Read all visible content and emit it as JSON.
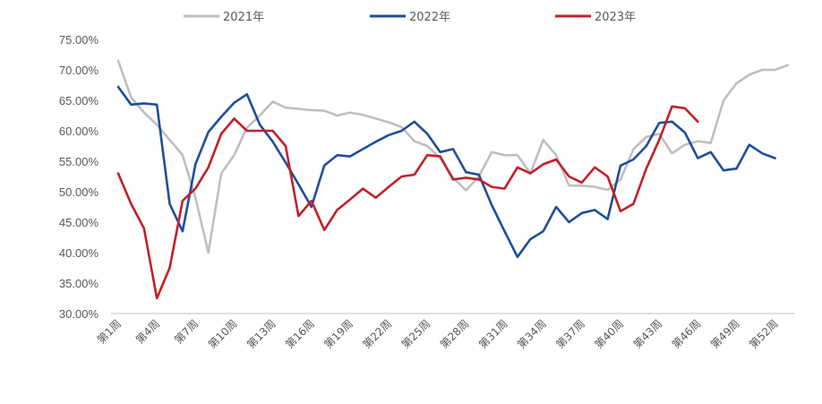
{
  "chart_data": {
    "type": "line",
    "title": "",
    "xlabel": "",
    "ylabel": "",
    "ylim": [
      30,
      75
    ],
    "y_ticks": [
      "30.00%",
      "35.00%",
      "40.00%",
      "45.00%",
      "50.00%",
      "55.00%",
      "60.00%",
      "65.00%",
      "70.00%",
      "75.00%"
    ],
    "grid": false,
    "legend_position": "top",
    "x_tick_labels": [
      "第1周",
      "第4周",
      "第7周",
      "第10周",
      "第13周",
      "第16周",
      "第19周",
      "第22周",
      "第25周",
      "第28周",
      "第31周",
      "第34周",
      "第37周",
      "第40周",
      "第43周",
      "第46周",
      "第49周",
      "第52周"
    ],
    "x": [
      1,
      2,
      3,
      4,
      5,
      6,
      7,
      8,
      9,
      10,
      11,
      12,
      13,
      14,
      15,
      16,
      17,
      18,
      19,
      20,
      21,
      22,
      23,
      24,
      25,
      26,
      27,
      28,
      29,
      30,
      31,
      32,
      33,
      34,
      35,
      36,
      37,
      38,
      39,
      40,
      41,
      42,
      43,
      44,
      45,
      46,
      47,
      48,
      49,
      50,
      51,
      52,
      53
    ],
    "series": [
      {
        "name": "2021年",
        "color": "#bfbfbf",
        "values": [
          71.5,
          65.5,
          63.0,
          61.0,
          58.5,
          56.0,
          49.0,
          40.0,
          53.0,
          56.0,
          60.5,
          62.5,
          64.8,
          63.8,
          63.6,
          63.4,
          63.3,
          62.5,
          63.0,
          62.6,
          62.0,
          61.4,
          60.6,
          58.3,
          57.5,
          55.5,
          52.3,
          50.2,
          52.5,
          56.5,
          56.0,
          56.0,
          53.0,
          58.5,
          56.0,
          51.0,
          51.0,
          50.8,
          50.3,
          52.0,
          57.0,
          59.0,
          59.5,
          56.3,
          57.7,
          58.3,
          58.0,
          65.0,
          67.8,
          69.2,
          70.0,
          70.0,
          70.8
        ]
      },
      {
        "name": "2022年",
        "color": "#1f4e9b",
        "values": [
          67.2,
          64.3,
          64.5,
          64.3,
          48.0,
          43.5,
          54.5,
          59.8,
          62.3,
          64.6,
          66.0,
          61.0,
          58.2,
          54.8,
          51.2,
          47.5,
          54.3,
          56.0,
          55.8,
          57.0,
          58.2,
          59.3,
          60.0,
          61.5,
          59.5,
          56.5,
          57.0,
          53.2,
          52.8,
          47.8,
          43.5,
          39.3,
          42.2,
          43.5,
          47.5,
          45.0,
          46.5,
          47.0,
          45.5,
          54.3,
          55.3,
          57.5,
          61.3,
          61.5,
          59.7,
          55.5,
          56.5,
          53.5,
          53.8,
          57.7,
          56.3,
          55.5,
          null
        ]
      },
      {
        "name": "2023年",
        "color": "#c0202a",
        "values": [
          53.0,
          48.0,
          44.0,
          32.5,
          37.5,
          48.5,
          50.5,
          54.0,
          59.5,
          62.0,
          60.0,
          60.0,
          60.0,
          57.5,
          46.0,
          48.5,
          43.7,
          47.0,
          48.7,
          50.5,
          49.0,
          50.8,
          52.5,
          52.8,
          56.0,
          55.8,
          52.0,
          52.3,
          52.0,
          50.8,
          50.5,
          54.0,
          53.0,
          54.5,
          55.3,
          52.5,
          51.5,
          54.0,
          52.5,
          46.8,
          48.0,
          53.8,
          58.5,
          64.0,
          63.7,
          61.5,
          null,
          null,
          null,
          null,
          null,
          null,
          null
        ]
      }
    ]
  }
}
